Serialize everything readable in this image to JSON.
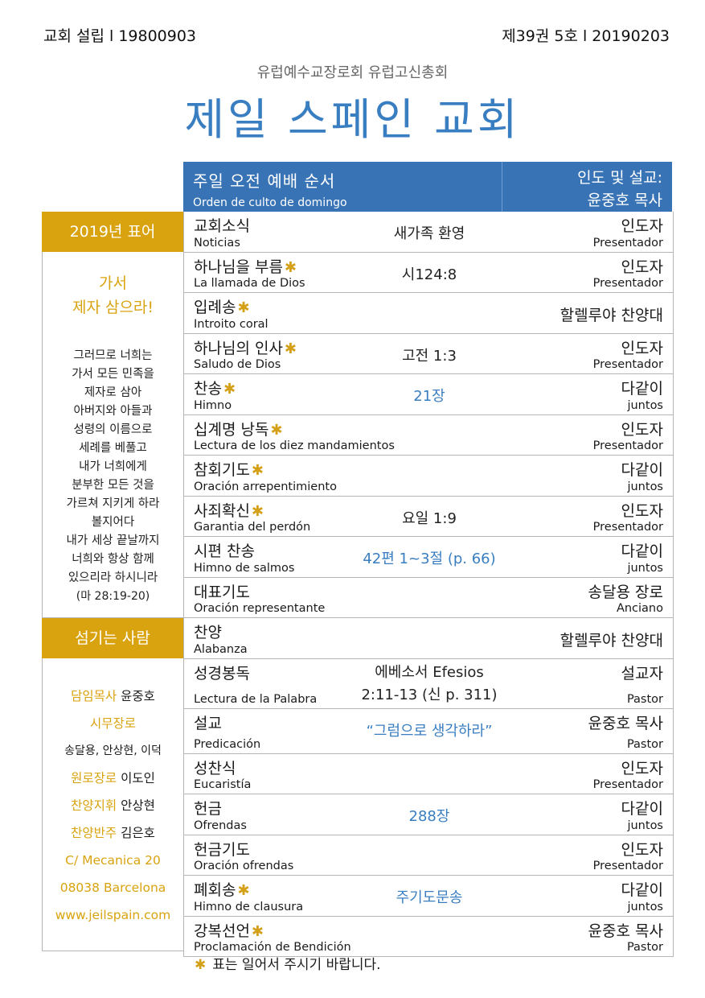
{
  "header": {
    "established": "교회 설립 l 19800903",
    "issue": "제39권 5호 l 20190203",
    "organization": "유럽예수교장로회 유럽고신총회",
    "church_name": "제일 스페인 교회"
  },
  "order_header": {
    "title_ko": "주일 오전 예배 순서",
    "title_es": "Orden de culto de domingo",
    "leader_label": "인도 및 설교:",
    "leader_name": "윤중호 목사"
  },
  "star_symbol": "✱",
  "order": [
    {
      "ko": "교회소식",
      "es": "Noticias",
      "center": "새가족 환영",
      "center_blue": false,
      "right_ko": "인도자",
      "right_es": "Presentador",
      "star": false
    },
    {
      "ko": "하나님을 부름",
      "es": "La llamada de Dios",
      "center": "시124:8",
      "center_blue": false,
      "right_ko": "인도자",
      "right_es": "Presentador",
      "star": true
    },
    {
      "ko": "입례송",
      "es": "Introito coral",
      "center": "",
      "center_blue": false,
      "right_ko": "할렐루야 찬양대",
      "right_es": "",
      "star": true
    },
    {
      "ko": "하나님의 인사",
      "es": "Saludo de Dios",
      "center": "고전 1:3",
      "center_blue": false,
      "right_ko": "인도자",
      "right_es": "Presentador",
      "star": true
    },
    {
      "ko": "찬송",
      "es": "Himno",
      "center": "21장",
      "center_blue": true,
      "right_ko": "다같이",
      "right_es": "juntos",
      "star": true
    },
    {
      "ko": "십계명 낭독",
      "es": "Lectura de los diez mandamientos",
      "center": "",
      "center_blue": false,
      "right_ko": "인도자",
      "right_es": "Presentador",
      "star": true
    },
    {
      "ko": "참회기도",
      "es": "Oración arrepentimiento",
      "center": "",
      "center_blue": false,
      "right_ko": "다같이",
      "right_es": "juntos",
      "star": true
    },
    {
      "ko": "사죄확신",
      "es": "Garantia del perdón",
      "center": "요일 1:9",
      "center_blue": false,
      "right_ko": "인도자",
      "right_es": "Presentador",
      "star": true
    },
    {
      "ko": "시편 찬송",
      "es": "Himno de salmos",
      "center": "42편 1~3절 (p. 66)",
      "center_blue": true,
      "right_ko": "다같이",
      "right_es": "juntos",
      "star": false
    },
    {
      "ko": "대표기도",
      "es": "Oración representante",
      "center": "",
      "center_blue": false,
      "right_ko": "송달용 장로",
      "right_es": "Anciano",
      "star": false
    },
    {
      "ko": "찬양",
      "es": "Alabanza",
      "center": "",
      "center_blue": false,
      "right_ko": "할렐루야 찬양대",
      "right_es": "",
      "star": false
    },
    {
      "ko": "성경봉독",
      "es": "Lectura de la Palabra",
      "center": "에베소서 Efesios",
      "center2": "2:11-13 (신 p. 311)",
      "center_blue": false,
      "right_ko": "설교자",
      "right_es": "Pastor",
      "star": false
    },
    {
      "ko": "설교",
      "es": "Predicación",
      "center": "“그럼으로 생각하라”",
      "center_blue": true,
      "right_ko": "윤중호 목사",
      "right_es": "Pastor",
      "star": false
    },
    {
      "ko": "성찬식",
      "es": "Eucaristía",
      "center": "",
      "center_blue": false,
      "right_ko": "인도자",
      "right_es": "Presentador",
      "star": false
    },
    {
      "ko": "헌금",
      "es": "Ofrendas",
      "center": "288장",
      "center_blue": true,
      "right_ko": "다같이",
      "right_es": "juntos",
      "star": false
    },
    {
      "ko": "헌금기도",
      "es": "Oración ofrendas",
      "center": "",
      "center_blue": false,
      "right_ko": "인도자",
      "right_es": "Presentador",
      "star": false
    },
    {
      "ko": "폐회송",
      "es": "Himno de clausura",
      "center": "주기도문송",
      "center_blue": true,
      "right_ko": "다같이",
      "right_es": "juntos",
      "star": true
    },
    {
      "ko": "강복선언",
      "es": "Proclamación de Bendición",
      "center": "",
      "center_blue": false,
      "right_ko": "윤중호 목사",
      "right_es": "Pastor",
      "star": true
    }
  ],
  "motto": {
    "heading": "2019년 표어",
    "line1": "가서",
    "line2": "제자 삼으라!",
    "verse_lines": [
      "그러므로 너희는",
      "가서 모든 민족을",
      "제자로 삼아",
      "아버지와 아들과",
      "성령의 이름으로",
      "세례를 베풀고",
      "내가 너희에게",
      "분부한 모든 것을",
      "가르쳐 지키게 하라",
      "볼지어다",
      "내가 세상 끝날까지",
      "너희와 항상 함께",
      "있으리라 하시니라"
    ],
    "reference": "(마 28:19-20)"
  },
  "servants": {
    "heading": "섬기는 사람",
    "pastor_label": "담임목사",
    "pastor_name": "윤중호",
    "elders_label": "시무장로",
    "elders_names": "송달용, 안상현, 이덕",
    "retired_label": "원로장로",
    "retired_name": "이도인",
    "choir_director_label": "찬양지휘",
    "choir_director_name": "안상현",
    "accompanist_label": "찬양반주",
    "accompanist_name": "김은호",
    "address1": "C/ Mecanica 20",
    "address2": "08038 Barcelona",
    "website": "www.jeilspain.com"
  },
  "footnote": "표는 일어서 주시기 바랍니다."
}
